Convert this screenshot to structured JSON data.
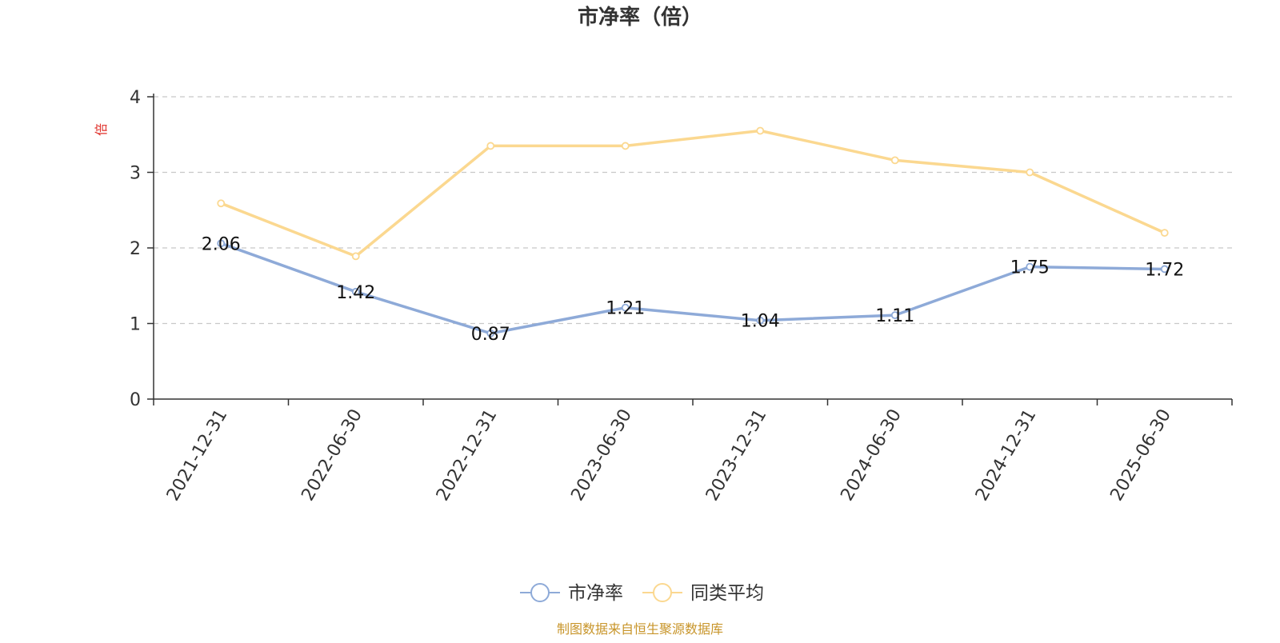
{
  "chart_data": {
    "type": "line",
    "title": "市净率（倍）",
    "ylabel": "倍",
    "xlabel": "",
    "categories": [
      "2021-12-31",
      "2022-06-30",
      "2022-12-31",
      "2023-06-30",
      "2023-12-31",
      "2024-06-30",
      "2024-12-31",
      "2025-06-30"
    ],
    "ylim": [
      0,
      4
    ],
    "yticks": [
      "0",
      "1",
      "2",
      "3",
      "4"
    ],
    "grid": true,
    "legend_position": "bottom",
    "series": [
      {
        "name": "市净率",
        "color": "#8eaad8",
        "values": [
          2.06,
          1.42,
          0.87,
          1.21,
          1.04,
          1.11,
          1.75,
          1.72
        ],
        "labels": [
          "2.06",
          "1.42",
          "0.87",
          "1.21",
          "1.04",
          "1.11",
          "1.75",
          "1.72"
        ]
      },
      {
        "name": "同类平均",
        "color": "#fbd890",
        "values": [
          2.59,
          1.89,
          3.35,
          3.35,
          3.55,
          3.16,
          3.0,
          2.2
        ]
      }
    ]
  },
  "footer": {
    "source": "制图数据来自恒生聚源数据库"
  },
  "colors": {
    "ylabel": "#e0302a",
    "footer": "#c8952a",
    "title": "#333333",
    "axis": "#333333"
  }
}
